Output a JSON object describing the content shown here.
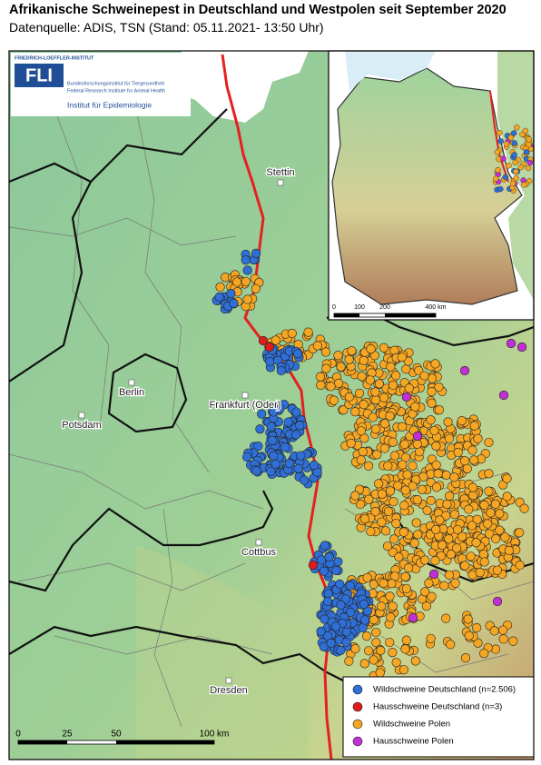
{
  "header": {
    "title": "Afrikanische Schweinepest in Deutschland und Westpolen seit September 2020",
    "subtitle": "Datenquelle: ADIS, TSN (Stand: 05.11.2021- 13:50 Uhr)"
  },
  "logo": {
    "top": "FRIEDRICH-LOEFFLER-INSTITUT",
    "mark": "FLI",
    "line1": "Bundesforschungsinstitut für Tiergesundheit",
    "line2": "Federal Research Institute for Animal Health",
    "institute": "Institut für Epidemiologie"
  },
  "places": [
    "Stettin",
    "Berlin",
    "Potsdam",
    "Frankfurt (Oder)",
    "Cottbus",
    "Dresden"
  ],
  "legend": [
    {
      "label": "Wildschweine Deutschland (n=2.506)",
      "color": "#2f6fd6"
    },
    {
      "label": "Hausschweine Deutschland (n=3)",
      "color": "#e01b1b"
    },
    {
      "label": "Wildschweine Polen",
      "color": "#f5a623"
    },
    {
      "label": "Hausschweine Polen",
      "color": "#c22fd6"
    }
  ],
  "scale": [
    "0",
    "25",
    "50",
    "100 km"
  ],
  "inset_scale": [
    "0",
    "100",
    "200",
    "400 km"
  ]
}
